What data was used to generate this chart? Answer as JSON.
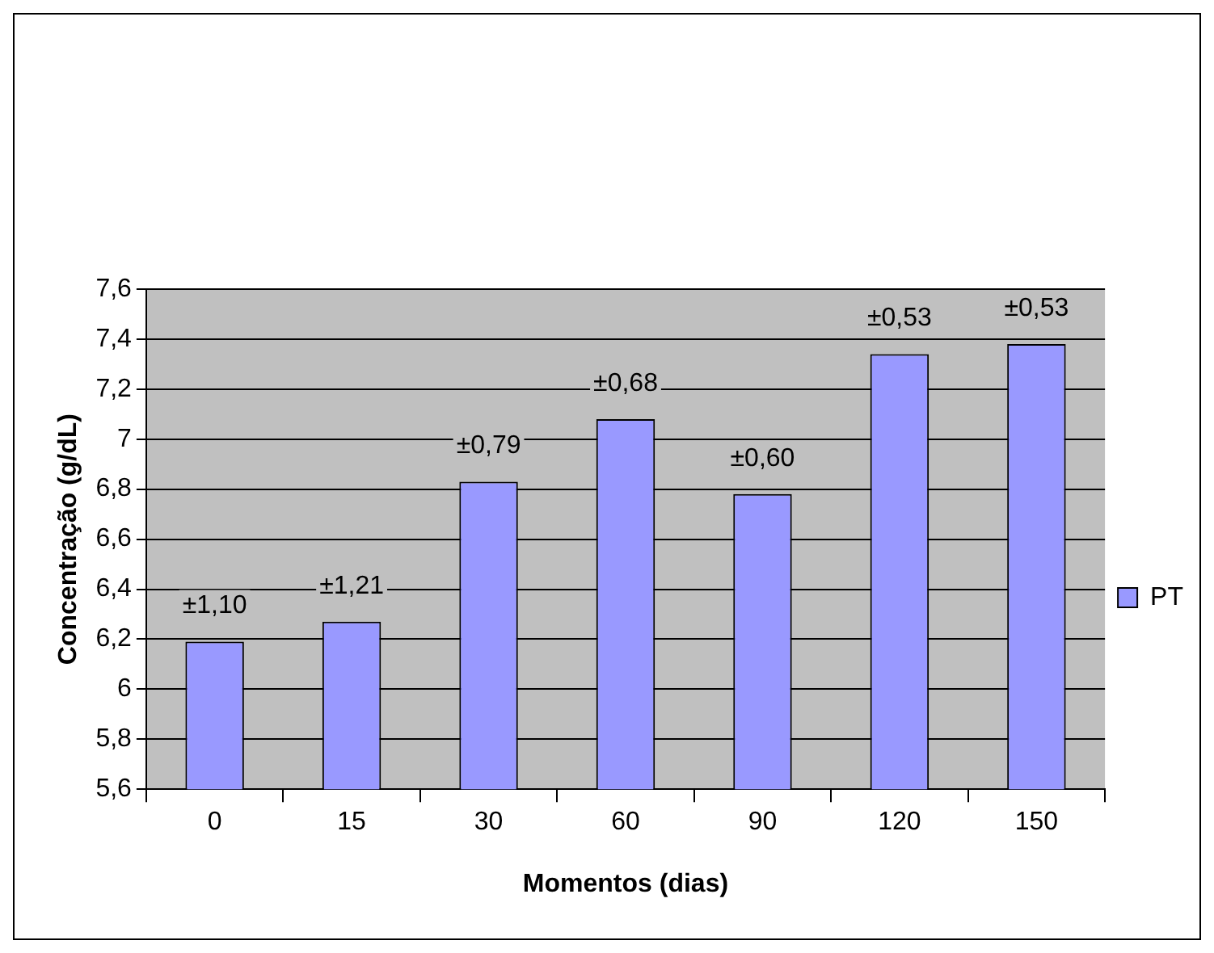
{
  "chart_data": {
    "type": "bar",
    "xlabel": "Momentos (dias)",
    "ylabel": "Concentração (g/dL)",
    "categories": [
      "0",
      "15",
      "30",
      "60",
      "90",
      "120",
      "150"
    ],
    "series": [
      {
        "name": "PT",
        "color": "#9999ff",
        "values": [
          6.19,
          6.27,
          6.83,
          7.08,
          6.78,
          7.34,
          7.38
        ]
      }
    ],
    "annotations": [
      {
        "text": "±1,10",
        "x": "0",
        "y": 6.19
      },
      {
        "text": "±1,21",
        "x": "15",
        "y": 6.27
      },
      {
        "text": "±0,79",
        "x": "30",
        "y": 6.83
      },
      {
        "text": "±0,68",
        "x": "60",
        "y": 7.08
      },
      {
        "text": "±0,60",
        "x": "90",
        "y": 6.78
      },
      {
        "text": "±0,53",
        "x": "120",
        "y": 7.34
      },
      {
        "text": "±0,53",
        "x": "150",
        "y": 7.38
      }
    ],
    "ylim": [
      5.6,
      7.6
    ],
    "yticks": [
      {
        "value": 5.6,
        "label": "5,6"
      },
      {
        "value": 5.8,
        "label": "5,8"
      },
      {
        "value": 6,
        "label": "6"
      },
      {
        "value": 6.2,
        "label": "6,2"
      },
      {
        "value": 6.4,
        "label": "6,4"
      },
      {
        "value": 6.6,
        "label": "6,6"
      },
      {
        "value": 6.8,
        "label": "6,8"
      },
      {
        "value": 7,
        "label": "7"
      },
      {
        "value": 7.2,
        "label": "7,2"
      },
      {
        "value": 7.4,
        "label": "7,4"
      },
      {
        "value": 7.6,
        "label": "7,6"
      }
    ],
    "grid": "y",
    "legend": "right"
  }
}
